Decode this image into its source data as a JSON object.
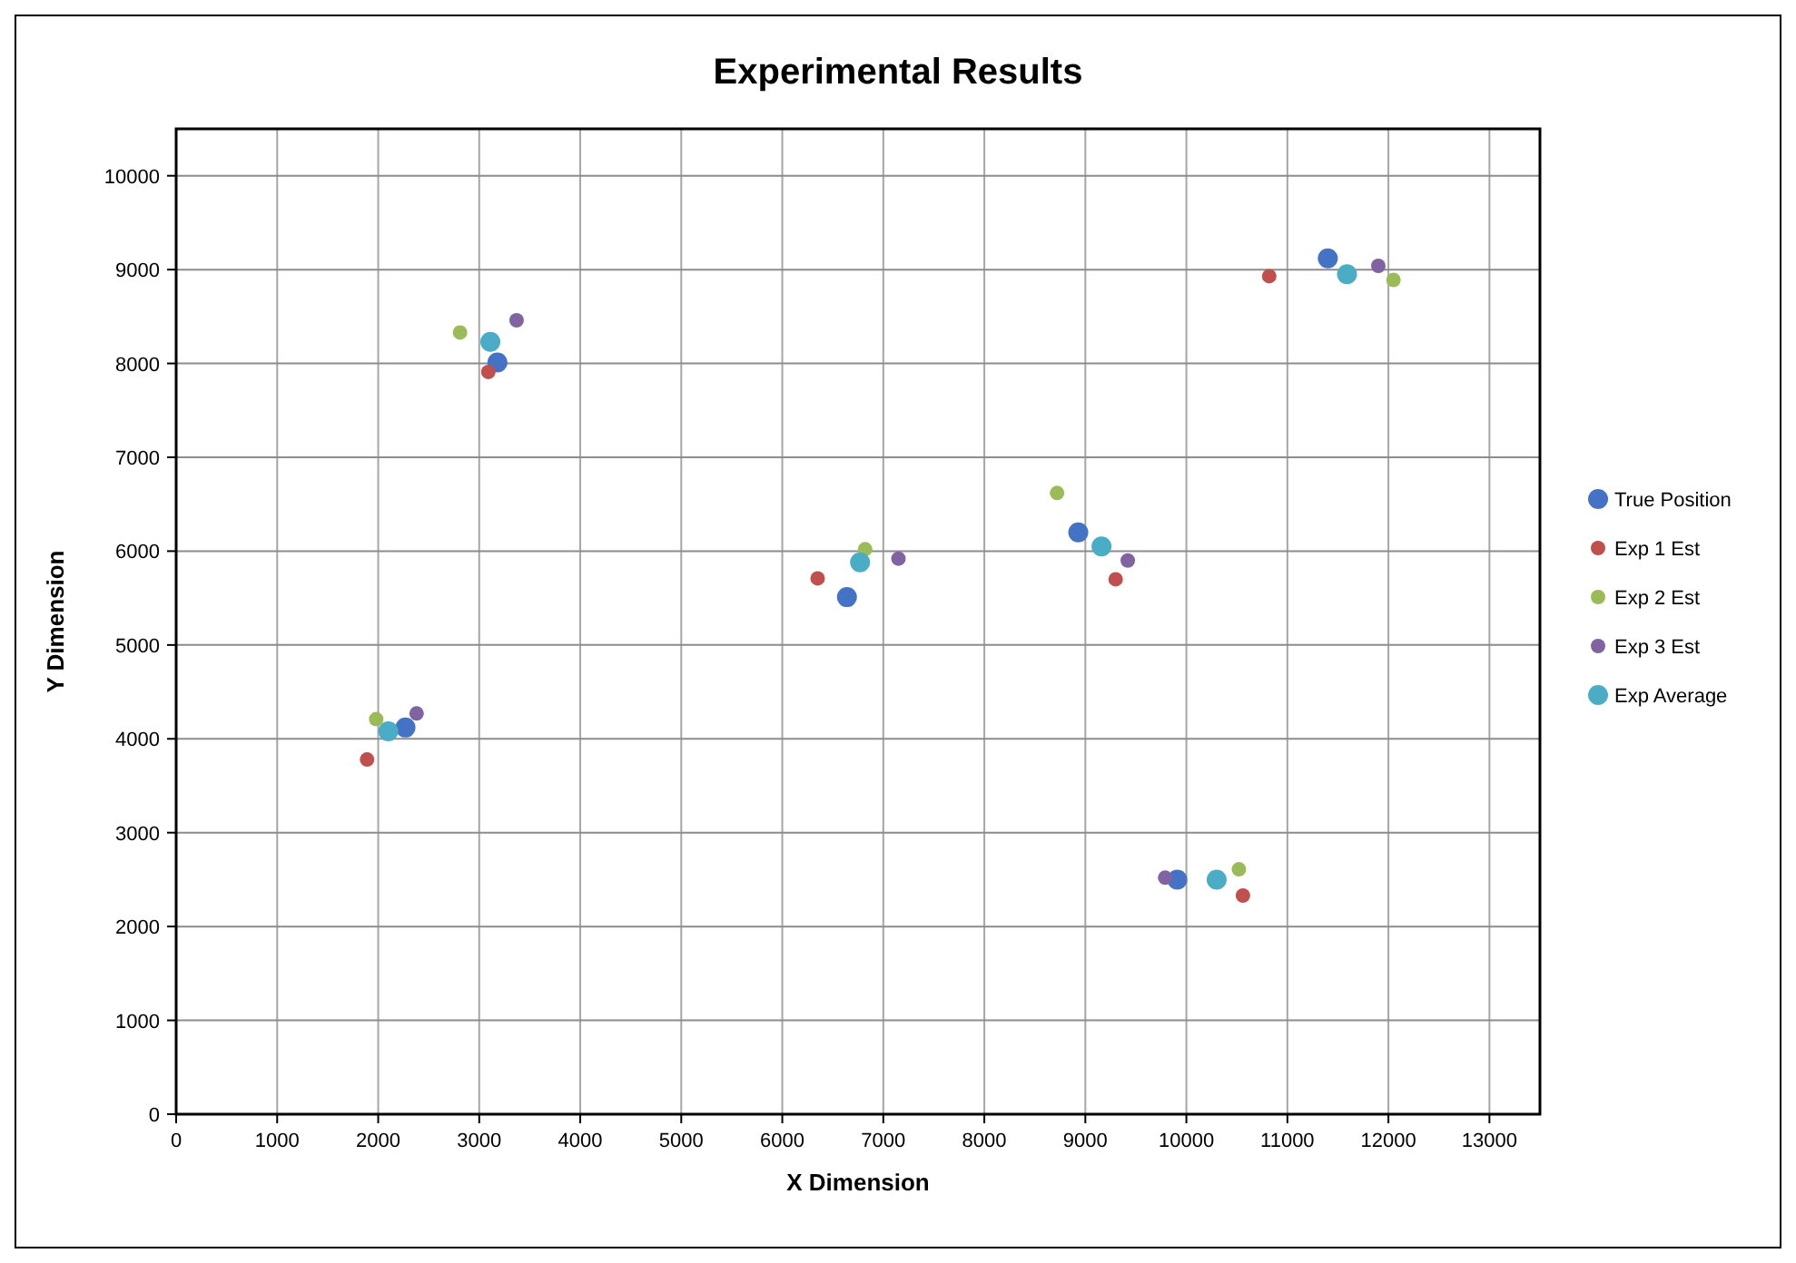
{
  "chart_data": {
    "type": "scatter",
    "title": "Experimental Results",
    "xlabel": "X Dimension",
    "ylabel": "Y Dimension",
    "xlim": [
      0,
      13500
    ],
    "xticks": [
      0,
      1000,
      2000,
      3000,
      4000,
      5000,
      6000,
      7000,
      8000,
      9000,
      10000,
      11000,
      12000,
      13000
    ],
    "ylim": [
      0,
      10500
    ],
    "yticks": [
      0,
      1000,
      2000,
      3000,
      4000,
      5000,
      6000,
      7000,
      8000,
      9000,
      10000
    ],
    "grid": true,
    "legend": "right",
    "marker": "circle",
    "series": [
      {
        "name": "True Position",
        "color": "#4472c4",
        "x": [
          2270,
          3180,
          6640,
          8930,
          9910,
          11400
        ],
        "values": [
          4120,
          8010,
          5510,
          6200,
          2500,
          9120
        ]
      },
      {
        "name": "Exp 1 Est",
        "color": "#c0504d",
        "x": [
          1890,
          3090,
          6350,
          9300,
          10560,
          10820
        ],
        "values": [
          3780,
          7910,
          5710,
          5700,
          2330,
          8930
        ]
      },
      {
        "name": "Exp 2 Est",
        "color": "#9bbb59",
        "x": [
          1980,
          2810,
          6820,
          8720,
          10520,
          12050
        ],
        "values": [
          4210,
          8330,
          6020,
          6620,
          2610,
          8890
        ]
      },
      {
        "name": "Exp 3 Est",
        "color": "#8064a2",
        "x": [
          2380,
          3370,
          7150,
          9420,
          9790,
          11900
        ],
        "values": [
          4270,
          8460,
          5920,
          5900,
          2520,
          9040
        ]
      },
      {
        "name": "Exp Average",
        "color": "#4bacc6",
        "x": [
          2100,
          3110,
          6770,
          9160,
          10300,
          11590
        ],
        "values": [
          4080,
          8230,
          5880,
          6050,
          2500,
          8950
        ]
      }
    ]
  }
}
